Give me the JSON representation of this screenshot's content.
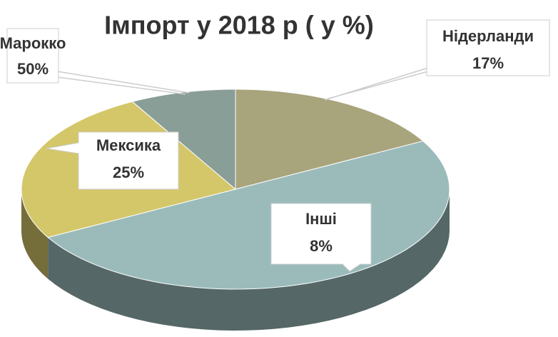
{
  "chart_data": {
    "type": "pie",
    "title": "Імпорт у 2018 р ( у %)",
    "categories": [
      "Нідерланди",
      "Марокко",
      "Мексика",
      "Інші"
    ],
    "values": [
      17,
      50,
      25,
      8
    ],
    "value_labels": [
      "17%",
      "50%",
      "25%",
      "8%"
    ],
    "colors": [
      "#a8a47c",
      "#9bbbbb",
      "#d4c76a",
      "#8a9e98"
    ]
  }
}
